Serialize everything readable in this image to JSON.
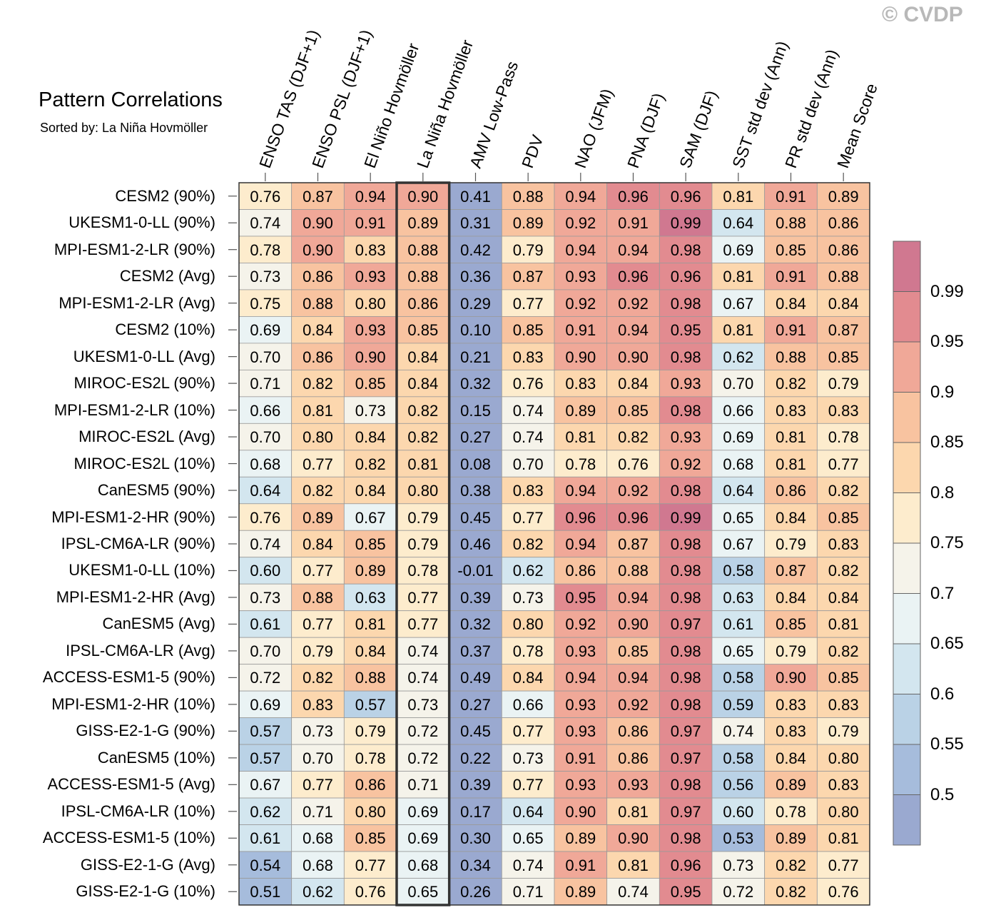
{
  "watermark": "© CVDP",
  "chart_data": {
    "type": "heatmap",
    "title": "Pattern Correlations",
    "subtitle": "Sorted by: La Niña Hovmöller",
    "columns": [
      "ENSO TAS (DJF+1)",
      "ENSO PSL (DJF+1)",
      "El Niño Hovmöller",
      "La Niña Hovmöller",
      "AMV Low-Pass",
      "PDV",
      "NAO (JFM)",
      "PNA (DJF)",
      "SAM (DJF)",
      "SST std dev (Ann)",
      "PR std dev (Ann)",
      "Mean Score"
    ],
    "highlighted_column": "La Niña Hovmöller",
    "rows": [
      "CESM2 (90%)",
      "UKESM1-0-LL (90%)",
      "MPI-ESM1-2-LR (90%)",
      "CESM2 (Avg)",
      "MPI-ESM1-2-LR (Avg)",
      "CESM2 (10%)",
      "UKESM1-0-LL (Avg)",
      "MIROC-ES2L (90%)",
      "MPI-ESM1-2-LR (10%)",
      "MIROC-ES2L (Avg)",
      "MIROC-ES2L (10%)",
      "CanESM5 (90%)",
      "MPI-ESM1-2-HR (90%)",
      "IPSL-CM6A-LR (90%)",
      "UKESM1-0-LL (10%)",
      "MPI-ESM1-2-HR (Avg)",
      "CanESM5 (Avg)",
      "IPSL-CM6A-LR (Avg)",
      "ACCESS-ESM1-5 (90%)",
      "MPI-ESM1-2-HR (10%)",
      "GISS-E2-1-G (90%)",
      "CanESM5 (10%)",
      "ACCESS-ESM1-5 (Avg)",
      "IPSL-CM6A-LR (10%)",
      "ACCESS-ESM1-5 (10%)",
      "GISS-E2-1-G (Avg)",
      "GISS-E2-1-G (10%)"
    ],
    "values": [
      [
        "0.76",
        "0.87",
        "0.94",
        "0.90",
        "0.41",
        "0.88",
        "0.94",
        "0.96",
        "0.96",
        "0.81",
        "0.91",
        "0.89"
      ],
      [
        "0.74",
        "0.90",
        "0.91",
        "0.89",
        "0.31",
        "0.89",
        "0.92",
        "0.91",
        "0.99",
        "0.64",
        "0.88",
        "0.86"
      ],
      [
        "0.78",
        "0.90",
        "0.83",
        "0.88",
        "0.42",
        "0.79",
        "0.94",
        "0.94",
        "0.98",
        "0.69",
        "0.85",
        "0.86"
      ],
      [
        "0.73",
        "0.86",
        "0.93",
        "0.88",
        "0.36",
        "0.87",
        "0.93",
        "0.96",
        "0.96",
        "0.81",
        "0.91",
        "0.88"
      ],
      [
        "0.75",
        "0.88",
        "0.80",
        "0.86",
        "0.29",
        "0.77",
        "0.92",
        "0.92",
        "0.98",
        "0.67",
        "0.84",
        "0.84"
      ],
      [
        "0.69",
        "0.84",
        "0.93",
        "0.85",
        "0.10",
        "0.85",
        "0.91",
        "0.94",
        "0.95",
        "0.81",
        "0.91",
        "0.87"
      ],
      [
        "0.70",
        "0.86",
        "0.90",
        "0.84",
        "0.21",
        "0.83",
        "0.90",
        "0.90",
        "0.98",
        "0.62",
        "0.88",
        "0.85"
      ],
      [
        "0.71",
        "0.82",
        "0.85",
        "0.84",
        "0.32",
        "0.76",
        "0.83",
        "0.84",
        "0.93",
        "0.70",
        "0.82",
        "0.79"
      ],
      [
        "0.66",
        "0.81",
        "0.73",
        "0.82",
        "0.15",
        "0.74",
        "0.89",
        "0.85",
        "0.98",
        "0.66",
        "0.83",
        "0.83"
      ],
      [
        "0.70",
        "0.80",
        "0.84",
        "0.82",
        "0.27",
        "0.74",
        "0.81",
        "0.82",
        "0.93",
        "0.69",
        "0.81",
        "0.78"
      ],
      [
        "0.68",
        "0.77",
        "0.82",
        "0.81",
        "0.08",
        "0.70",
        "0.78",
        "0.76",
        "0.92",
        "0.68",
        "0.81",
        "0.77"
      ],
      [
        "0.64",
        "0.82",
        "0.84",
        "0.80",
        "0.38",
        "0.83",
        "0.94",
        "0.92",
        "0.98",
        "0.64",
        "0.86",
        "0.82"
      ],
      [
        "0.76",
        "0.89",
        "0.67",
        "0.79",
        "0.45",
        "0.77",
        "0.96",
        "0.96",
        "0.99",
        "0.65",
        "0.84",
        "0.85"
      ],
      [
        "0.74",
        "0.84",
        "0.85",
        "0.79",
        "0.46",
        "0.82",
        "0.94",
        "0.87",
        "0.98",
        "0.67",
        "0.79",
        "0.83"
      ],
      [
        "0.60",
        "0.77",
        "0.89",
        "0.78",
        "-0.01",
        "0.62",
        "0.86",
        "0.88",
        "0.98",
        "0.58",
        "0.87",
        "0.82"
      ],
      [
        "0.73",
        "0.88",
        "0.63",
        "0.77",
        "0.39",
        "0.73",
        "0.95",
        "0.94",
        "0.98",
        "0.63",
        "0.84",
        "0.84"
      ],
      [
        "0.61",
        "0.77",
        "0.81",
        "0.77",
        "0.32",
        "0.80",
        "0.92",
        "0.90",
        "0.97",
        "0.61",
        "0.85",
        "0.81"
      ],
      [
        "0.70",
        "0.79",
        "0.84",
        "0.74",
        "0.37",
        "0.78",
        "0.93",
        "0.85",
        "0.98",
        "0.65",
        "0.79",
        "0.82"
      ],
      [
        "0.72",
        "0.82",
        "0.88",
        "0.74",
        "0.49",
        "0.84",
        "0.94",
        "0.94",
        "0.98",
        "0.58",
        "0.90",
        "0.85"
      ],
      [
        "0.69",
        "0.83",
        "0.57",
        "0.73",
        "0.27",
        "0.66",
        "0.93",
        "0.92",
        "0.98",
        "0.59",
        "0.83",
        "0.83"
      ],
      [
        "0.57",
        "0.73",
        "0.79",
        "0.72",
        "0.45",
        "0.77",
        "0.93",
        "0.86",
        "0.97",
        "0.74",
        "0.83",
        "0.79"
      ],
      [
        "0.57",
        "0.70",
        "0.78",
        "0.72",
        "0.22",
        "0.73",
        "0.91",
        "0.86",
        "0.97",
        "0.58",
        "0.84",
        "0.80"
      ],
      [
        "0.67",
        "0.77",
        "0.86",
        "0.71",
        "0.39",
        "0.77",
        "0.93",
        "0.93",
        "0.98",
        "0.56",
        "0.89",
        "0.83"
      ],
      [
        "0.62",
        "0.71",
        "0.80",
        "0.69",
        "0.17",
        "0.64",
        "0.90",
        "0.81",
        "0.97",
        "0.60",
        "0.78",
        "0.80"
      ],
      [
        "0.61",
        "0.68",
        "0.85",
        "0.69",
        "0.30",
        "0.65",
        "0.89",
        "0.90",
        "0.98",
        "0.53",
        "0.89",
        "0.81"
      ],
      [
        "0.54",
        "0.68",
        "0.77",
        "0.68",
        "0.34",
        "0.74",
        "0.91",
        "0.81",
        "0.96",
        "0.73",
        "0.82",
        "0.77"
      ],
      [
        "0.51",
        "0.62",
        "0.76",
        "0.65",
        "0.26",
        "0.71",
        "0.89",
        "0.74",
        "0.95",
        "0.72",
        "0.82",
        "0.76"
      ]
    ],
    "colorbar": {
      "labels": [
        "0.99",
        "0.95",
        "0.9",
        "0.85",
        "0.8",
        "0.75",
        "0.7",
        "0.65",
        "0.6",
        "0.55",
        "0.5"
      ],
      "thresholds": [
        0.5,
        0.55,
        0.6,
        0.65,
        0.7,
        0.75,
        0.8,
        0.85,
        0.9,
        0.95,
        0.99
      ],
      "colors": [
        "#9aa9d0",
        "#a6bcdc",
        "#bad2e6",
        "#d3e6ef",
        "#eaf3f4",
        "#f5f3ea",
        "#fdeccd",
        "#fcd7ae",
        "#f8c3a0",
        "#f0a898",
        "#e28b90",
        "#d07890"
      ]
    },
    "legend": "right"
  }
}
